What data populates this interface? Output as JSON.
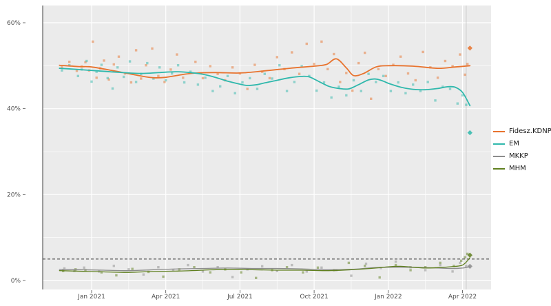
{
  "chart_data": {
    "type": "scatter",
    "title": "",
    "description": "Hungarian opinion polling: scatter of poll results with smoothed trend lines per party, Nov 2020 - Apr 2022",
    "panel_bg": "#EBEBEB",
    "grid_color": "#FFFFFF",
    "axis_text_color": "#4d4d4d",
    "threshold_pct": 5,
    "election_line_m": 16.15,
    "x_unit": "months, 1 = Jan 2021",
    "x_axis": {
      "ticks": [
        {
          "label": "Jan 2021",
          "m": 1
        },
        {
          "label": "Apr 2021",
          "m": 4
        },
        {
          "label": "Jul 2021",
          "m": 7
        },
        {
          "label": "Oct 2021",
          "m": 10
        },
        {
          "label": "Jan 2022",
          "m": 13
        },
        {
          "label": "Apr 2022",
          "m": 16
        }
      ]
    },
    "y_axis": {
      "range": [
        0,
        64
      ],
      "ticks": [
        {
          "label": "0%",
          "v": 0
        },
        {
          "label": "20%",
          "v": 20
        },
        {
          "label": "40%",
          "v": 40
        },
        {
          "label": "60%",
          "v": 60
        }
      ]
    },
    "legend_position": "right",
    "series": [
      {
        "name": "Fidesz.KDNP",
        "color": "#E8732E",
        "width": 1.8,
        "line": [
          [
            -0.3,
            50.1
          ],
          [
            0.5,
            49.8
          ],
          [
            1,
            49.7
          ],
          [
            2,
            48.7
          ],
          [
            3,
            47.6
          ],
          [
            3.5,
            47.2
          ],
          [
            4,
            47.3
          ],
          [
            5,
            48.2
          ],
          [
            6,
            48.4
          ],
          [
            7,
            48.3
          ],
          [
            8,
            48.8
          ],
          [
            9,
            49.4
          ],
          [
            10,
            49.9
          ],
          [
            10.5,
            50.3
          ],
          [
            10.9,
            51.6
          ],
          [
            11.3,
            49.5
          ],
          [
            11.6,
            47.7
          ],
          [
            12,
            48.2
          ],
          [
            12.5,
            49.7
          ],
          [
            13,
            50.0
          ],
          [
            14,
            49.9
          ],
          [
            15,
            49.4
          ],
          [
            15.7,
            49.7
          ],
          [
            16.3,
            50.0
          ]
        ],
        "points": [
          [
            -0.2,
            49.6
          ],
          [
            0.1,
            50.9
          ],
          [
            0.4,
            48.8
          ],
          [
            0.6,
            49.8
          ],
          [
            0.75,
            50.8
          ],
          [
            0.9,
            48.9
          ],
          [
            1.05,
            55.6
          ],
          [
            1.2,
            47.2
          ],
          [
            1.35,
            49.4
          ],
          [
            1.5,
            51.2
          ],
          [
            1.7,
            46.8
          ],
          [
            1.9,
            50.3
          ],
          [
            2.1,
            52.1
          ],
          [
            2.35,
            48.2
          ],
          [
            2.6,
            46.1
          ],
          [
            2.8,
            53.6
          ],
          [
            3.0,
            47.0
          ],
          [
            3.2,
            50.1
          ],
          [
            3.45,
            54.0
          ],
          [
            3.7,
            47.6
          ],
          [
            3.95,
            46.2
          ],
          [
            4.2,
            49.1
          ],
          [
            4.45,
            52.6
          ],
          [
            4.7,
            47.2
          ],
          [
            4.95,
            48.3
          ],
          [
            5.2,
            50.9
          ],
          [
            5.5,
            47.1
          ],
          [
            5.8,
            49.9
          ],
          [
            6.1,
            48.1
          ],
          [
            6.4,
            46.6
          ],
          [
            6.7,
            49.6
          ],
          [
            7.0,
            48.2
          ],
          [
            7.3,
            44.6
          ],
          [
            7.6,
            50.2
          ],
          [
            7.9,
            48.6
          ],
          [
            8.2,
            47.1
          ],
          [
            8.5,
            52.0
          ],
          [
            8.8,
            49.2
          ],
          [
            9.1,
            53.1
          ],
          [
            9.4,
            48.1
          ],
          [
            9.7,
            55.1
          ],
          [
            10.0,
            50.4
          ],
          [
            10.3,
            55.6
          ],
          [
            10.55,
            49.2
          ],
          [
            10.8,
            52.7
          ],
          [
            11.05,
            46.2
          ],
          [
            11.3,
            48.3
          ],
          [
            11.55,
            44.2
          ],
          [
            11.8,
            50.6
          ],
          [
            12.05,
            53.0
          ],
          [
            12.3,
            42.3
          ],
          [
            12.6,
            49.2
          ],
          [
            12.9,
            47.6
          ],
          [
            13.2,
            50.2
          ],
          [
            13.5,
            52.1
          ],
          [
            13.8,
            48.2
          ],
          [
            14.1,
            46.6
          ],
          [
            14.4,
            53.2
          ],
          [
            14.7,
            49.6
          ],
          [
            15.0,
            47.2
          ],
          [
            15.3,
            51.1
          ],
          [
            15.6,
            49.9
          ],
          [
            15.9,
            52.6
          ],
          [
            16.1,
            47.9
          ],
          [
            16.2,
            50.4
          ]
        ],
        "final": [
          16.3,
          54.1
        ]
      },
      {
        "name": "EM",
        "color": "#2FB8AC",
        "width": 1.8,
        "line": [
          [
            -0.3,
            49.4
          ],
          [
            0.5,
            49.1
          ],
          [
            1,
            48.9
          ],
          [
            2,
            48.5
          ],
          [
            3,
            48.2
          ],
          [
            4,
            48.5
          ],
          [
            4.5,
            48.6
          ],
          [
            5,
            48.4
          ],
          [
            5.5,
            48.0
          ],
          [
            6,
            47.3
          ],
          [
            6.5,
            46.4
          ],
          [
            7,
            45.7
          ],
          [
            7.3,
            45.4
          ],
          [
            7.7,
            45.6
          ],
          [
            8,
            46.0
          ],
          [
            8.5,
            46.6
          ],
          [
            9,
            47.2
          ],
          [
            9.5,
            47.5
          ],
          [
            9.8,
            47.4
          ],
          [
            10.2,
            46.3
          ],
          [
            10.6,
            45.2
          ],
          [
            11,
            44.7
          ],
          [
            11.4,
            44.6
          ],
          [
            11.8,
            45.6
          ],
          [
            12.2,
            46.7
          ],
          [
            12.5,
            46.9
          ],
          [
            12.8,
            46.4
          ],
          [
            13,
            45.9
          ],
          [
            13.5,
            45.0
          ],
          [
            14,
            44.5
          ],
          [
            14.5,
            44.4
          ],
          [
            15,
            44.7
          ],
          [
            15.4,
            45.1
          ],
          [
            15.7,
            45.0
          ],
          [
            16,
            43.8
          ],
          [
            16.3,
            40.7
          ]
        ],
        "points": [
          [
            -0.2,
            48.9
          ],
          [
            0.1,
            50.1
          ],
          [
            0.45,
            47.6
          ],
          [
            0.6,
            49.1
          ],
          [
            0.8,
            51.1
          ],
          [
            1.0,
            46.3
          ],
          [
            1.2,
            48.6
          ],
          [
            1.4,
            50.2
          ],
          [
            1.65,
            47.1
          ],
          [
            1.85,
            44.7
          ],
          [
            2.05,
            49.6
          ],
          [
            2.3,
            47.4
          ],
          [
            2.55,
            51.0
          ],
          [
            2.8,
            46.2
          ],
          [
            3.0,
            48.1
          ],
          [
            3.25,
            50.6
          ],
          [
            3.5,
            47.0
          ],
          [
            3.75,
            49.6
          ],
          [
            4.0,
            46.6
          ],
          [
            4.25,
            48.2
          ],
          [
            4.5,
            50.1
          ],
          [
            4.75,
            46.1
          ],
          [
            5.0,
            48.6
          ],
          [
            5.3,
            45.6
          ],
          [
            5.6,
            47.2
          ],
          [
            5.9,
            44.1
          ],
          [
            6.2,
            45.2
          ],
          [
            6.5,
            47.6
          ],
          [
            6.8,
            43.6
          ],
          [
            7.1,
            46.1
          ],
          [
            7.4,
            47.1
          ],
          [
            7.7,
            44.6
          ],
          [
            8.0,
            48.1
          ],
          [
            8.3,
            47.0
          ],
          [
            8.6,
            50.1
          ],
          [
            8.9,
            44.1
          ],
          [
            9.2,
            46.2
          ],
          [
            9.5,
            49.9
          ],
          [
            9.8,
            47.6
          ],
          [
            10.1,
            44.2
          ],
          [
            10.4,
            46.1
          ],
          [
            10.7,
            42.6
          ],
          [
            11.0,
            45.1
          ],
          [
            11.3,
            43.1
          ],
          [
            11.6,
            46.6
          ],
          [
            11.9,
            44.1
          ],
          [
            12.2,
            48.1
          ],
          [
            12.5,
            46.2
          ],
          [
            12.8,
            47.6
          ],
          [
            13.1,
            44.1
          ],
          [
            13.4,
            46.1
          ],
          [
            13.7,
            43.6
          ],
          [
            14.0,
            45.6
          ],
          [
            14.3,
            44.1
          ],
          [
            14.6,
            46.2
          ],
          [
            14.9,
            41.9
          ],
          [
            15.2,
            45.1
          ],
          [
            15.5,
            44.6
          ],
          [
            15.8,
            41.2
          ],
          [
            16.0,
            43.1
          ],
          [
            16.15,
            40.9
          ]
        ],
        "final": [
          16.3,
          34.4
        ]
      },
      {
        "name": "MKKP",
        "color": "#8C8C8C",
        "width": 1.3,
        "line": [
          [
            -0.3,
            2.6
          ],
          [
            1.5,
            2.4
          ],
          [
            2.5,
            2.3
          ],
          [
            3.5,
            2.5
          ],
          [
            4.5,
            2.7
          ],
          [
            5.5,
            2.8
          ],
          [
            6.5,
            2.9
          ],
          [
            7.5,
            2.8
          ],
          [
            8.5,
            2.8
          ],
          [
            9.5,
            2.7
          ],
          [
            10.5,
            2.5
          ],
          [
            11.5,
            2.6
          ],
          [
            12.5,
            3.0
          ],
          [
            13.5,
            3.1
          ],
          [
            14.5,
            3.0
          ],
          [
            15.5,
            2.8
          ],
          [
            16,
            2.9
          ],
          [
            16.3,
            3.2
          ]
        ],
        "points": [
          [
            -0.1,
            2.8
          ],
          [
            0.3,
            2.2
          ],
          [
            0.7,
            3.0
          ],
          [
            1.3,
            2.1
          ],
          [
            1.9,
            3.4
          ],
          [
            2.5,
            2.6
          ],
          [
            3.1,
            1.4
          ],
          [
            3.7,
            3.1
          ],
          [
            4.3,
            2.4
          ],
          [
            4.9,
            3.6
          ],
          [
            5.5,
            2.1
          ],
          [
            6.1,
            3.1
          ],
          [
            6.7,
            0.8
          ],
          [
            7.3,
            2.6
          ],
          [
            7.9,
            3.3
          ],
          [
            8.5,
            2.2
          ],
          [
            9.1,
            3.6
          ],
          [
            9.7,
            2.1
          ],
          [
            10.3,
            3.0
          ],
          [
            10.9,
            2.4
          ],
          [
            11.5,
            1.1
          ],
          [
            12.1,
            3.9
          ],
          [
            12.7,
            2.9
          ],
          [
            13.3,
            4.4
          ],
          [
            13.9,
            3.1
          ],
          [
            14.5,
            2.4
          ],
          [
            15.1,
            3.6
          ],
          [
            15.6,
            2.1
          ],
          [
            15.9,
            4.1
          ],
          [
            16.15,
            3.3
          ]
        ],
        "final": [
          16.3,
          3.3
        ]
      },
      {
        "name": "MHM",
        "color": "#5F7F1E",
        "width": 1.3,
        "line": [
          [
            -0.3,
            2.3
          ],
          [
            1.5,
            2.0
          ],
          [
            2.5,
            1.9
          ],
          [
            3.5,
            2.1
          ],
          [
            4.5,
            2.2
          ],
          [
            5.5,
            2.4
          ],
          [
            6.5,
            2.6
          ],
          [
            7.5,
            2.5
          ],
          [
            8.5,
            2.4
          ],
          [
            9.5,
            2.4
          ],
          [
            10.5,
            2.3
          ],
          [
            11.5,
            2.5
          ],
          [
            12.5,
            2.9
          ],
          [
            13,
            3.2
          ],
          [
            13.5,
            3.3
          ],
          [
            14,
            3.1
          ],
          [
            14.5,
            2.9
          ],
          [
            15,
            3.0
          ],
          [
            15.5,
            3.2
          ],
          [
            16,
            3.6
          ],
          [
            16.3,
            5.3
          ]
        ],
        "points": [
          [
            -0.15,
            2.2
          ],
          [
            0.35,
            2.6
          ],
          [
            0.75,
            2.4
          ],
          [
            1.4,
            1.9
          ],
          [
            2.0,
            1.2
          ],
          [
            2.65,
            2.7
          ],
          [
            3.3,
            2.0
          ],
          [
            3.9,
            0.9
          ],
          [
            4.55,
            2.6
          ],
          [
            5.15,
            3.1
          ],
          [
            5.8,
            1.9
          ],
          [
            6.4,
            2.6
          ],
          [
            7.05,
            1.9
          ],
          [
            7.65,
            0.6
          ],
          [
            8.3,
            2.4
          ],
          [
            8.9,
            3.1
          ],
          [
            9.55,
            1.9
          ],
          [
            10.15,
            3.0
          ],
          [
            10.8,
            2.4
          ],
          [
            11.4,
            4.1
          ],
          [
            12.05,
            3.4
          ],
          [
            12.65,
            0.7
          ],
          [
            13.3,
            3.6
          ],
          [
            13.9,
            2.4
          ],
          [
            14.5,
            3.1
          ],
          [
            15.1,
            4.1
          ],
          [
            15.65,
            3.4
          ],
          [
            15.95,
            4.6
          ],
          [
            16.1,
            5.4
          ],
          [
            16.2,
            6.2
          ]
        ],
        "final": [
          16.3,
          5.9
        ]
      }
    ]
  }
}
